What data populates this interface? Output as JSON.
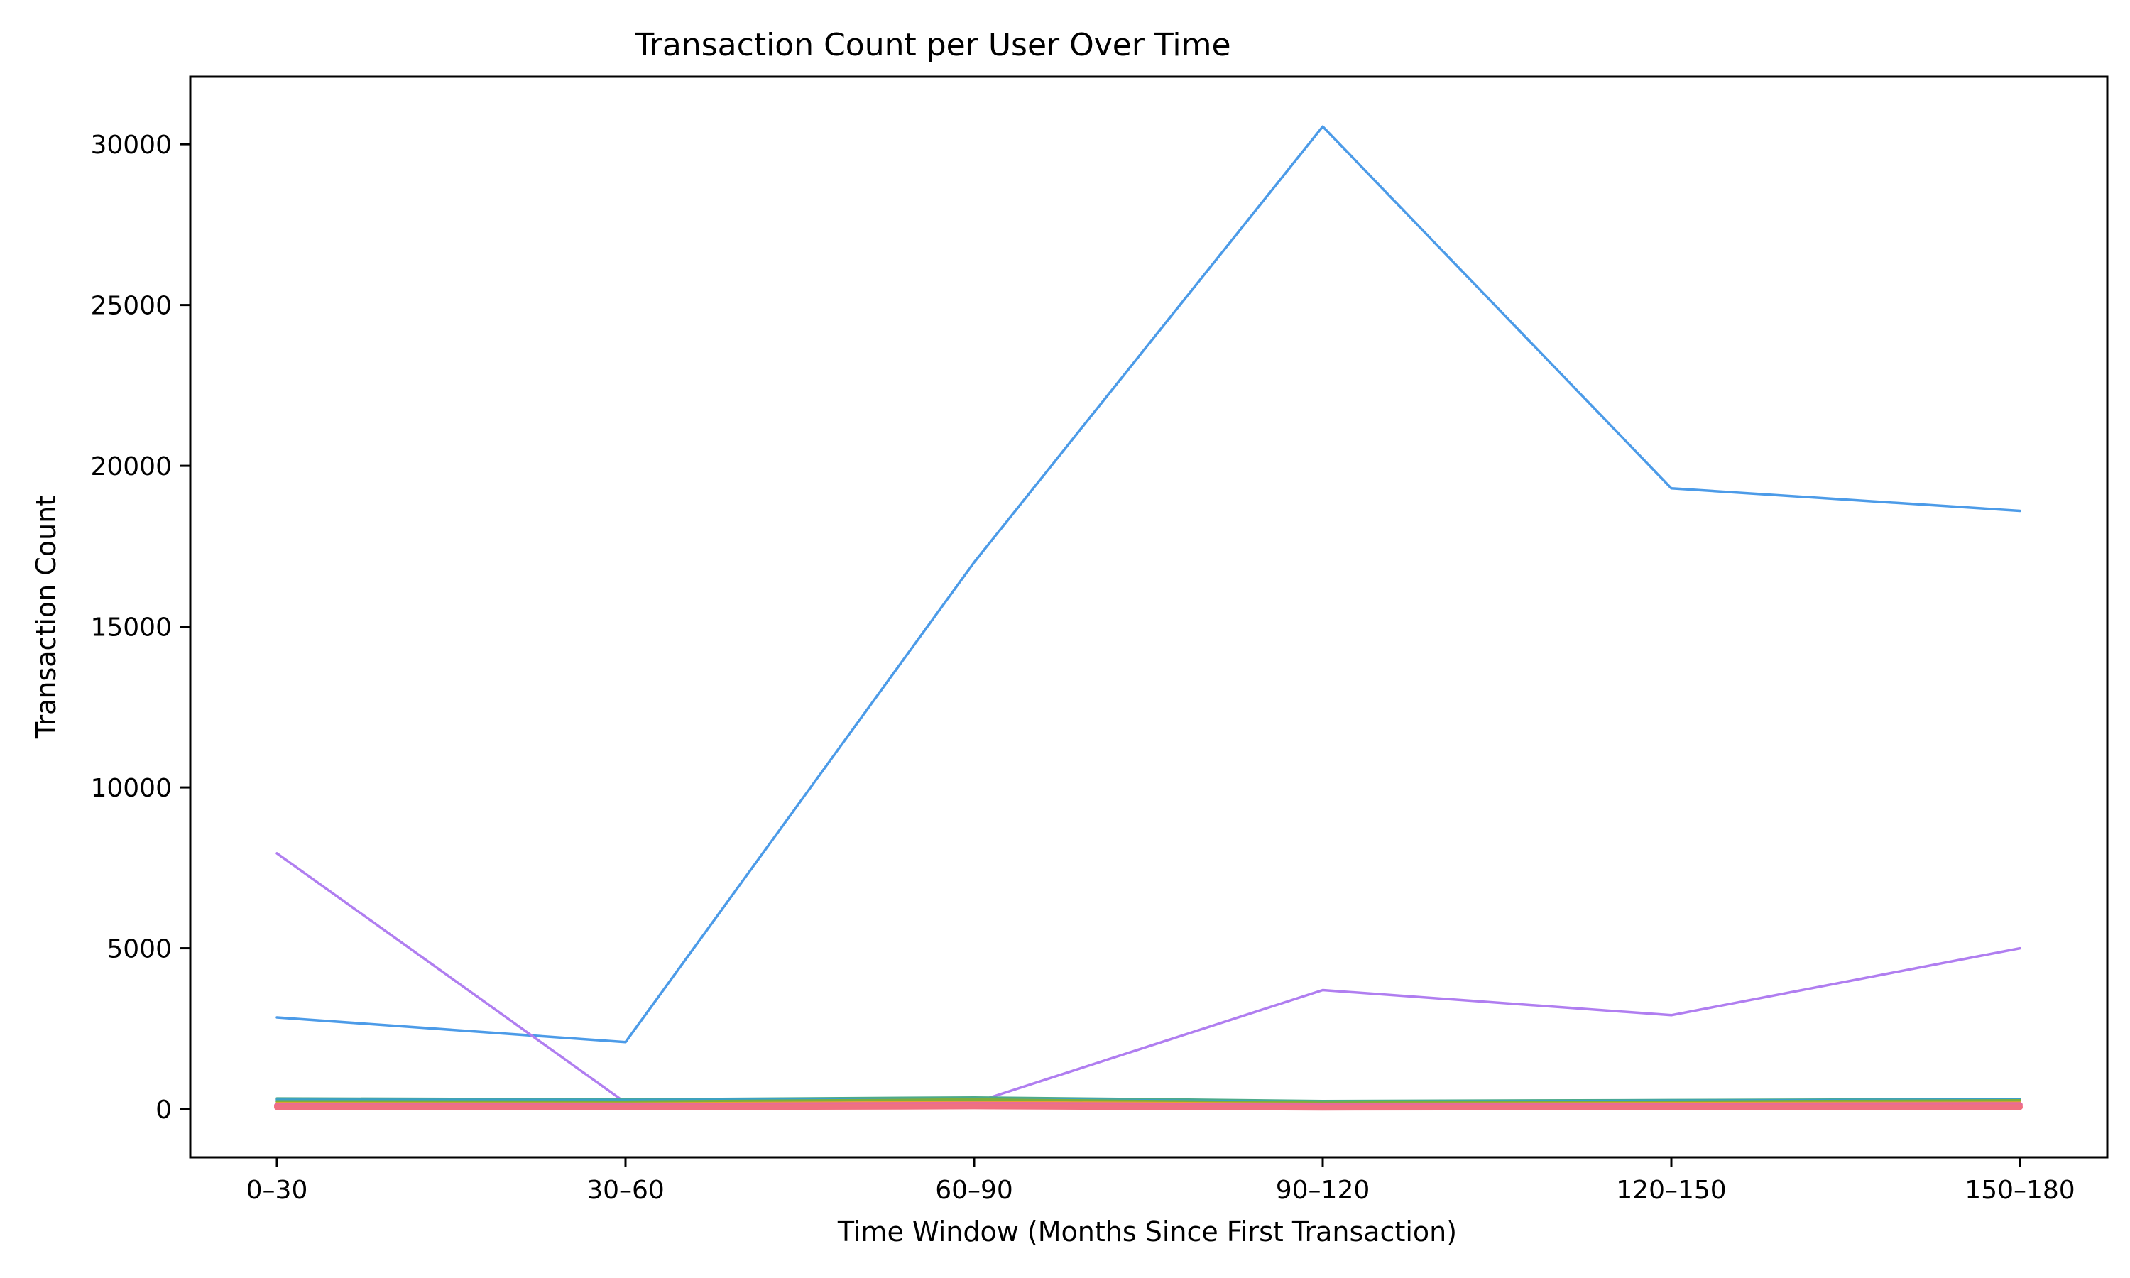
{
  "chart_data": {
    "type": "line",
    "title": "Transaction Count per User Over Time",
    "xlabel": "Time Window (Months Since First Transaction)",
    "ylabel": "Transaction Count",
    "categories": [
      "0–30",
      "30–60",
      "60–90",
      "90–120",
      "120–150",
      "150–180"
    ],
    "y_ticks": [
      0,
      5000,
      10000,
      15000,
      20000,
      25000,
      30000
    ],
    "ylim": [
      -1500,
      32100
    ],
    "grid": false,
    "legend": "none",
    "series": [
      {
        "color": "#4c9be8",
        "values": [
          2850,
          2080,
          17000,
          30550,
          19300,
          18600
        ]
      },
      {
        "color": "#b07ef0",
        "values": [
          7950,
          200,
          200,
          3700,
          2920,
          5000
        ]
      },
      {
        "color": "#4daa8a",
        "values": [
          330,
          300,
          360,
          250,
          280,
          310
        ]
      },
      {
        "color": "#3ba0c8",
        "values": [
          290,
          280,
          320,
          220,
          260,
          300
        ]
      },
      {
        "color": "#7fae3c",
        "values": [
          240,
          230,
          300,
          200,
          230,
          270
        ]
      },
      {
        "color": "#e8a030",
        "values": [
          180,
          170,
          220,
          160,
          180,
          200
        ]
      },
      {
        "color": "#e86a9a",
        "values": [
          110,
          100,
          140,
          90,
          110,
          130
        ]
      },
      {
        "color": "#f07080",
        "values": [
          60,
          50,
          80,
          40,
          50,
          60
        ]
      }
    ]
  }
}
